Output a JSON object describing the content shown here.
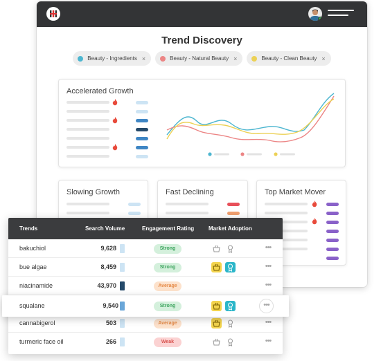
{
  "page": {
    "title": "Trend Discovery",
    "filters": [
      {
        "label": "Beauty - Ingredients",
        "color": "#4db6d0",
        "remove": "×"
      },
      {
        "label": "Beauty - Natural Beauty",
        "color": "#ec8585",
        "remove": "×"
      },
      {
        "label": "Beauty - Clean Beauty",
        "color": "#ecd155",
        "remove": "×"
      }
    ]
  },
  "cards": {
    "accelerated": "Accelerated Growth",
    "slowing": "Slowing Growth",
    "declining": "Fast Declining",
    "mover": "Top Market Mover"
  },
  "table": {
    "headers": {
      "trends": "Trends",
      "volume": "Search Volume",
      "engagement": "Engagement Rating",
      "adoption": "Market Adoption"
    },
    "rows": [
      {
        "name": "bakuchiol",
        "volume": "9,628",
        "rating": "Strong",
        "adoption": "low"
      },
      {
        "name": "bue algae",
        "volume": "8,459",
        "rating": "Strong",
        "adoption": "high"
      },
      {
        "name": "niacinamide",
        "volume": "43,970",
        "rating": "Average",
        "adoption": "none"
      },
      {
        "name": "squalane",
        "volume": "9,540",
        "rating": "Strong",
        "adoption": "high"
      },
      {
        "name": "cannabigerol",
        "volume": "503",
        "rating": "Average",
        "adoption": "mid"
      },
      {
        "name": "turmeric face oil",
        "volume": "266",
        "rating": "Weak",
        "adoption": "low"
      }
    ],
    "more": "•••"
  },
  "colors": {
    "strong_bg": "#d4f0dc",
    "strong_fg": "#3da45e",
    "average_bg": "#fde2cc",
    "average_fg": "#e58a47",
    "weak_bg": "#fbd2d2",
    "weak_fg": "#d9534f"
  }
}
